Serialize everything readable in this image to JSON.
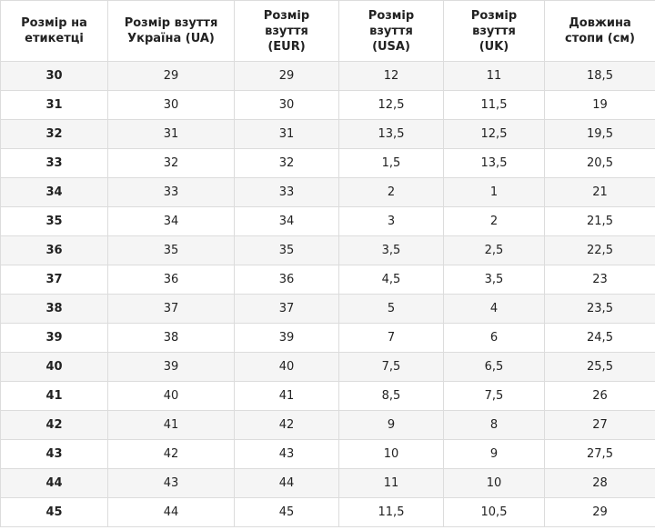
{
  "table": {
    "header": [
      "Розмір на\nетикетці",
      "Розмір взуття\nУкраїна (UA)",
      "Розмір\nвзуття\n(EUR)",
      "Розмір\nвзуття\n(USA)",
      "Розмір\nвзуття\n(UK)",
      "Довжина\nстопи (см)"
    ],
    "rows": [
      [
        "30",
        "29",
        "29",
        "12",
        "11",
        "18,5"
      ],
      [
        "31",
        "30",
        "30",
        "12,5",
        "11,5",
        "19"
      ],
      [
        "32",
        "31",
        "31",
        "13,5",
        "12,5",
        "19,5"
      ],
      [
        "33",
        "32",
        "32",
        "1,5",
        "13,5",
        "20,5"
      ],
      [
        "34",
        "33",
        "33",
        "2",
        "1",
        "21"
      ],
      [
        "35",
        "34",
        "34",
        "3",
        "2",
        "21,5"
      ],
      [
        "36",
        "35",
        "35",
        "3,5",
        "2,5",
        "22,5"
      ],
      [
        "37",
        "36",
        "36",
        "4,5",
        "3,5",
        "23"
      ],
      [
        "38",
        "37",
        "37",
        "5",
        "4",
        "23,5"
      ],
      [
        "39",
        "38",
        "39",
        "7",
        "6",
        "24,5"
      ],
      [
        "40",
        "39",
        "40",
        "7,5",
        "6,5",
        "25,5"
      ],
      [
        "41",
        "40",
        "41",
        "8,5",
        "7,5",
        "26"
      ],
      [
        "42",
        "41",
        "42",
        "9",
        "8",
        "27"
      ],
      [
        "43",
        "42",
        "43",
        "10",
        "9",
        "27,5"
      ],
      [
        "44",
        "43",
        "44",
        "11",
        "10",
        "28"
      ],
      [
        "45",
        "44",
        "45",
        "11,5",
        "10,5",
        "29"
      ]
    ]
  }
}
